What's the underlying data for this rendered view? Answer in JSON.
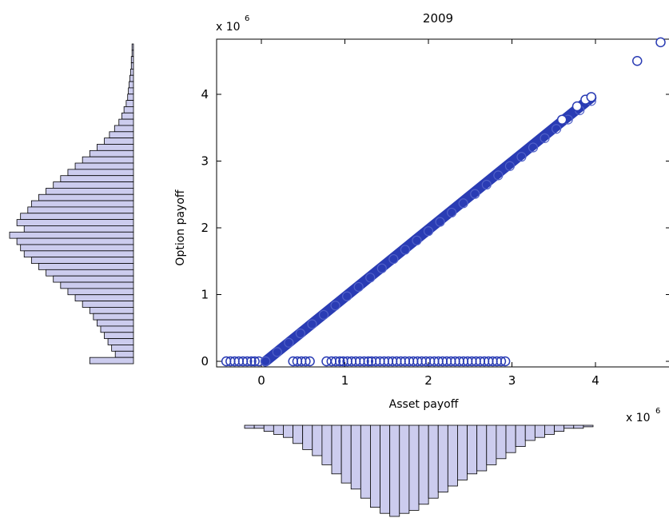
{
  "chart_data": {
    "type": "scatter",
    "title": "2009",
    "xlabel": "Asset payoff",
    "ylabel": "Option payoff",
    "x_exponent_label": "x 10",
    "x_exponent_sup": "6",
    "y_exponent_label": "x 10",
    "y_exponent_sup": "6",
    "xlim": [
      -0.55,
      4.8
    ],
    "ylim": [
      -0.1,
      4.85
    ],
    "x_ticks": [
      0,
      1,
      2,
      3,
      4
    ],
    "y_ticks": [
      0,
      1,
      2,
      3,
      4
    ],
    "strike": 0.05,
    "marker_color": "#2a3cb4",
    "hist_fill": "#ccccee",
    "payoff_line": {
      "x_start": 0.05,
      "x_end": 3.95,
      "description_points": [
        [
          0.05,
          0.0
        ],
        [
          1.0,
          0.95
        ],
        [
          2.0,
          1.95
        ],
        [
          3.0,
          2.95
        ],
        [
          3.6,
          3.6
        ],
        [
          3.95,
          3.95
        ]
      ]
    },
    "outliers": [
      [
        3.6,
        3.62
      ],
      [
        3.78,
        3.82
      ],
      [
        3.88,
        3.92
      ],
      [
        3.95,
        3.96
      ],
      [
        4.5,
        4.5
      ],
      [
        4.78,
        4.78
      ]
    ],
    "zero_payoff_points": [
      -0.42,
      -0.37,
      -0.32,
      -0.27,
      -0.22,
      -0.17,
      -0.12,
      -0.08,
      -0.03,
      0.38,
      0.43,
      0.48,
      0.53,
      0.58,
      0.78,
      0.84,
      0.89,
      0.94,
      0.98,
      1.03,
      1.08,
      1.13,
      1.18,
      1.23,
      1.28,
      1.32,
      1.37,
      1.42,
      1.47,
      1.52,
      1.57,
      1.62,
      1.67,
      1.72,
      1.77,
      1.82,
      1.87,
      1.92,
      1.97,
      2.02,
      2.07,
      2.12,
      2.17,
      2.22,
      2.27,
      2.32,
      2.37,
      2.42,
      2.47,
      2.52,
      2.57,
      2.62,
      2.67,
      2.72,
      2.77,
      2.82,
      2.87,
      2.92
    ],
    "asset_histogram": {
      "orientation": "below-x-axis",
      "counts": [
        1,
        1,
        2,
        3,
        4,
        6,
        8,
        10,
        13,
        16,
        19,
        21,
        24,
        27,
        29,
        30,
        29,
        28,
        26,
        24,
        22,
        20,
        18,
        16,
        15,
        13,
        11,
        9,
        7,
        5,
        4,
        3,
        2,
        1,
        1,
        0.5
      ]
    },
    "option_histogram": {
      "orientation": "left-of-y-axis",
      "counts_top_to_bottom": [
        0.2,
        0.2,
        0.3,
        0.3,
        0.4,
        0.5,
        0.6,
        0.7,
        0.8,
        1,
        1.3,
        1.6,
        2,
        2.6,
        3.3,
        4,
        5,
        6,
        7,
        8,
        9,
        10,
        11,
        12,
        13,
        14,
        14.5,
        15.5,
        16,
        15,
        17,
        16,
        15.5,
        15,
        14,
        13,
        12,
        11,
        10,
        9,
        8,
        7,
        6,
        5.5,
        5,
        4.5,
        4,
        3.5,
        3,
        2.5,
        6
      ]
    }
  }
}
